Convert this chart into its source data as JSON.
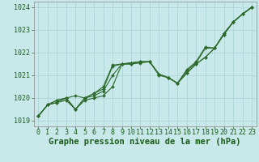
{
  "title": "Graphe pression niveau de la mer (hPa)",
  "xlabel_hours": [
    0,
    1,
    2,
    3,
    4,
    5,
    6,
    7,
    8,
    9,
    10,
    11,
    12,
    13,
    14,
    15,
    16,
    17,
    18,
    19,
    20,
    21,
    22,
    23
  ],
  "series": [
    [
      1019.2,
      1019.7,
      1019.8,
      1019.9,
      1019.5,
      1019.9,
      1020.0,
      1020.1,
      1020.5,
      1021.5,
      1021.5,
      1021.55,
      1021.6,
      1021.05,
      1020.9,
      1020.65,
      1021.1,
      1021.5,
      1021.8,
      1022.2,
      1022.8,
      1023.35,
      1023.7,
      1024.0
    ],
    [
      1019.2,
      1019.7,
      1019.8,
      1020.0,
      1019.5,
      1020.0,
      1020.1,
      1020.3,
      1021.0,
      1021.5,
      1021.5,
      1021.6,
      1021.6,
      1021.0,
      1020.9,
      1020.65,
      1021.1,
      1021.5,
      1021.8,
      1022.2,
      1022.8,
      1023.35,
      1023.7,
      1024.0
    ],
    [
      1019.2,
      1019.7,
      1019.9,
      1020.0,
      1019.5,
      1020.0,
      1020.2,
      1020.4,
      1021.4,
      1021.5,
      1021.55,
      1021.6,
      1021.6,
      1021.05,
      1020.9,
      1020.65,
      1021.2,
      1021.55,
      1022.2,
      1022.2,
      1022.85,
      1023.35,
      1023.7,
      1024.0
    ],
    [
      1019.2,
      1019.7,
      1019.9,
      1020.0,
      1020.1,
      1020.0,
      1020.2,
      1020.5,
      1021.45,
      1021.5,
      1021.55,
      1021.6,
      1021.6,
      1021.05,
      1020.9,
      1020.65,
      1021.25,
      1021.6,
      1022.25,
      1022.2,
      1022.85,
      1023.35,
      1023.7,
      1024.0
    ]
  ],
  "line_color": "#2d6b2d",
  "marker_style": "D",
  "marker_size": 2.0,
  "line_width": 0.8,
  "bg_color": "#c8e8ea",
  "grid_color": "#a8d0d4",
  "ylim": [
    1018.75,
    1024.25
  ],
  "yticks": [
    1019,
    1020,
    1021,
    1022,
    1023,
    1024
  ],
  "title_fontsize": 7.5,
  "title_color": "#1a5c1a",
  "tick_fontsize": 6.0,
  "tick_color": "#1a5c1a"
}
